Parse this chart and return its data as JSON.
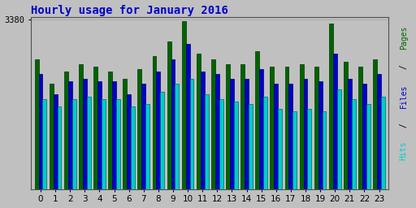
{
  "title": "Hourly usage for January 2016",
  "hours": [
    0,
    1,
    2,
    3,
    4,
    5,
    6,
    7,
    8,
    9,
    10,
    11,
    12,
    13,
    14,
    15,
    16,
    17,
    18,
    19,
    20,
    21,
    22,
    23
  ],
  "pages": [
    2600,
    2100,
    2350,
    2500,
    2450,
    2350,
    2200,
    2400,
    2650,
    2950,
    3350,
    2700,
    2600,
    2500,
    2500,
    2750,
    2450,
    2450,
    2500,
    2450,
    3300,
    2550,
    2450,
    2600
  ],
  "files": [
    2300,
    1900,
    2150,
    2200,
    2150,
    2150,
    1900,
    2100,
    2350,
    2600,
    2900,
    2350,
    2300,
    2200,
    2200,
    2400,
    2100,
    2100,
    2200,
    2150,
    2700,
    2200,
    2100,
    2300
  ],
  "hits": [
    1800,
    1650,
    1800,
    1850,
    1800,
    1800,
    1650,
    1700,
    1950,
    2100,
    2200,
    1900,
    1800,
    1750,
    1700,
    1850,
    1600,
    1550,
    1600,
    1550,
    2000,
    1800,
    1700,
    1850
  ],
  "color_pages": "#006400",
  "color_files": "#0000CD",
  "color_hits": "#00CCCC",
  "edge_pages": "#003300",
  "edge_files": "#000066",
  "edge_hits": "#006666",
  "background_color": "#C0C0C0",
  "title_color": "#0000CC",
  "ylim_max": 3380,
  "ylim_min": 0,
  "bar_width": 0.27,
  "fig_width": 5.12,
  "fig_height": 2.56,
  "dpi": 100,
  "ytick_val": 3380,
  "grid_color": "#A8A8A8",
  "right_label_pages": "Pages",
  "right_label_sep": " / ",
  "right_label_files": "Files",
  "right_label_hits": "Hits",
  "rl_color_pages": "#006400",
  "rl_color_sep": "#000000",
  "rl_color_files": "#0000CD",
  "rl_color_hits": "#00CCCC"
}
